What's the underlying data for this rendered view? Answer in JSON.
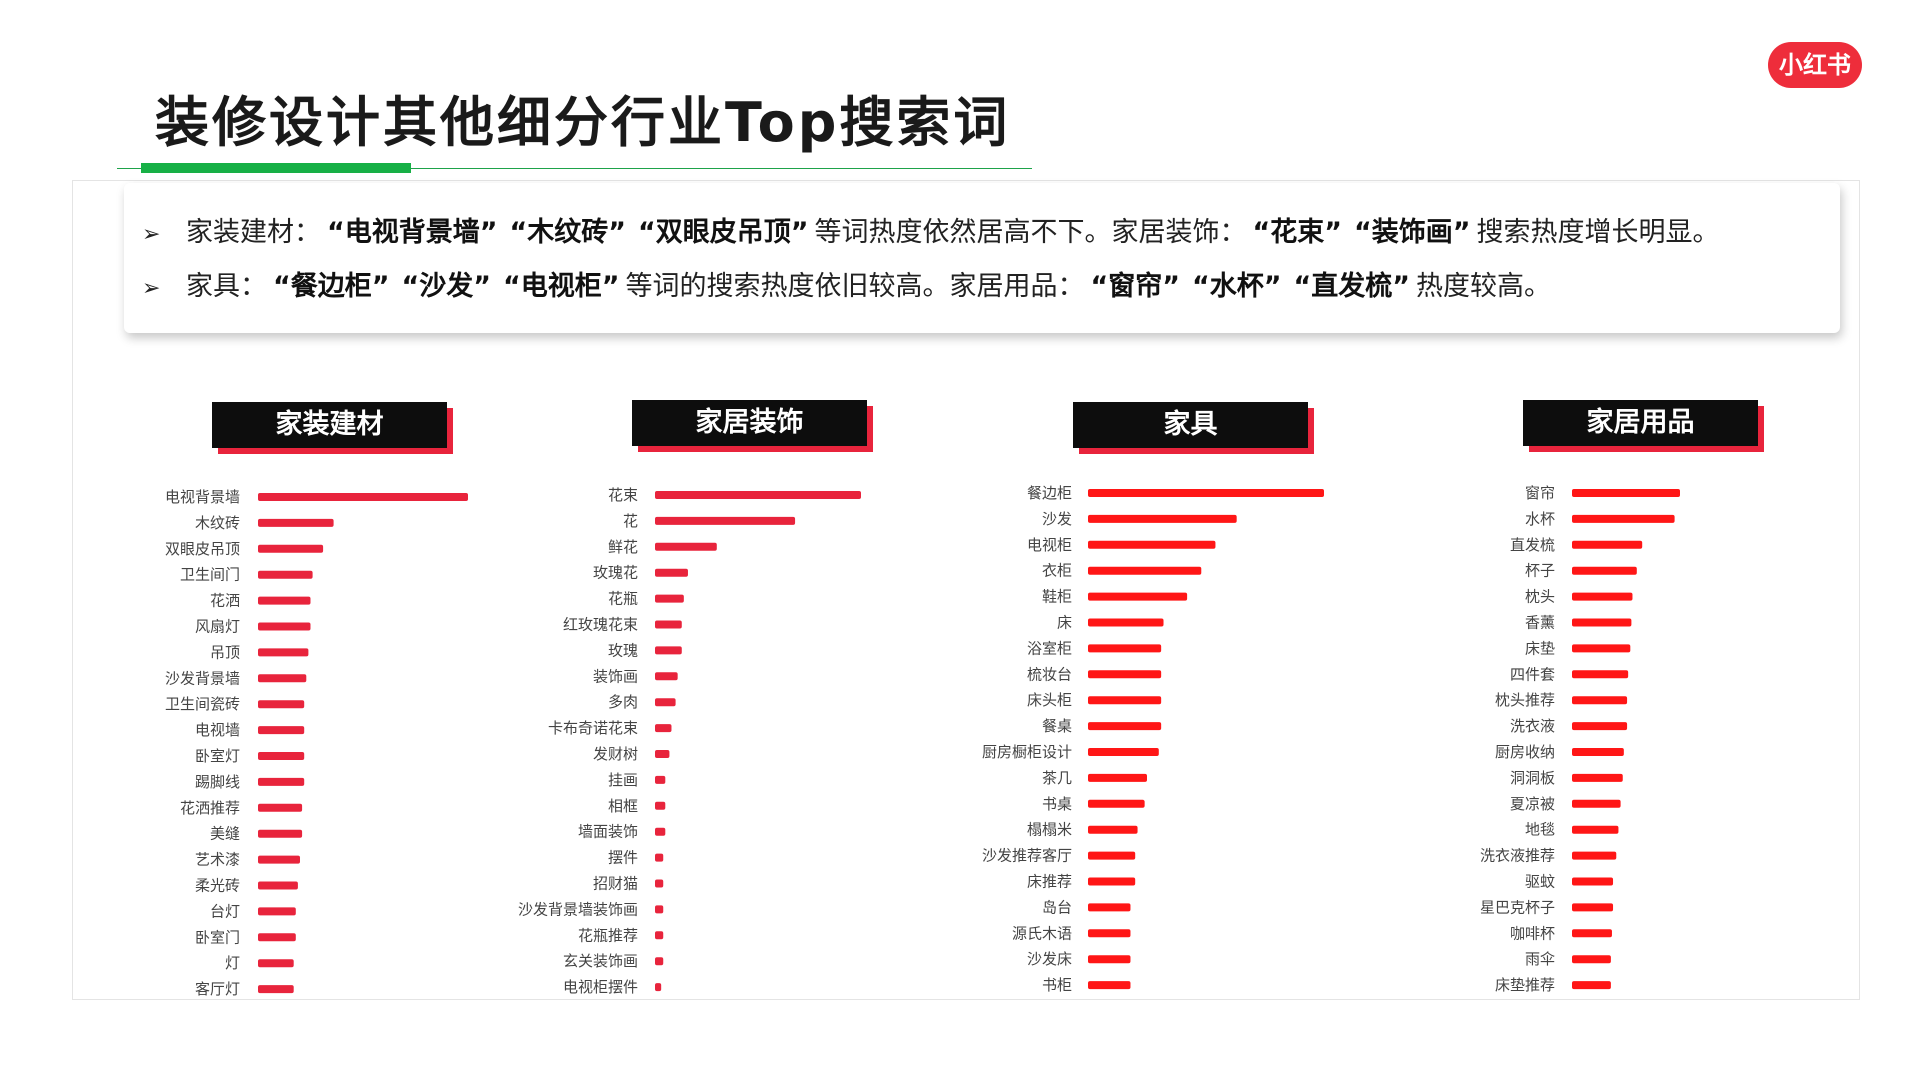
{
  "header": {
    "title": "装修设计其他细分行业Top搜索词",
    "logo_text": "小红书",
    "accent_color": "#17b046",
    "logo_color": "#ee2d3b"
  },
  "summary": {
    "lines": [
      {
        "arrow": "➢",
        "segments": [
          {
            "text": "家装建材：",
            "bold": false
          },
          {
            "text": "“电视背景墙”",
            "bold": true
          },
          {
            "text": "“木纹砖”",
            "bold": true
          },
          {
            "text": "“双眼皮吊顶”",
            "bold": true
          },
          {
            "text": "等词热度依然居高不下。家居装饰：",
            "bold": false
          },
          {
            "text": "“花束”",
            "bold": true
          },
          {
            "text": "“装饰画”",
            "bold": true
          },
          {
            "text": "搜索热度增长明显。",
            "bold": false
          }
        ]
      },
      {
        "arrow": "➢",
        "segments": [
          {
            "text": "家具：",
            "bold": false
          },
          {
            "text": "“餐边柜”",
            "bold": true
          },
          {
            "text": "“沙发”",
            "bold": true
          },
          {
            "text": "“电视柜”",
            "bold": true
          },
          {
            "text": "等词的搜索热度依旧较高。家居用品：",
            "bold": false
          },
          {
            "text": "“窗帘”",
            "bold": true
          },
          {
            "text": "“水杯”",
            "bold": true
          },
          {
            "text": "“直发梳”",
            "bold": true
          },
          {
            "text": "热度较高。",
            "bold": false
          }
        ]
      }
    ]
  },
  "chart_data": [
    {
      "type": "bar",
      "title": "家装建材",
      "bar_color": "#e8243c",
      "categories": [
        "电视背景墙",
        "木纹砖",
        "双眼皮吊顶",
        "卫生间门",
        "花洒",
        "风扇灯",
        "吊顶",
        "沙发背景墙",
        "卫生间瓷砖",
        "电视墙",
        "卧室灯",
        "踢脚线",
        "花洒推荐",
        "美缝",
        "艺术漆",
        "柔光砖",
        "台灯",
        "卧室门",
        "灯",
        "客厅灯"
      ],
      "values": [
        100,
        36,
        31,
        26,
        25,
        25,
        24,
        23,
        22,
        22,
        22,
        22,
        21,
        21,
        20,
        19,
        18,
        18,
        17,
        17
      ]
    },
    {
      "type": "bar",
      "title": "家居装饰",
      "bar_color": "#e8243c",
      "categories": [
        "花束",
        "花",
        "鲜花",
        "玫瑰花",
        "花瓶",
        "红玫瑰花束",
        "玫瑰",
        "装饰画",
        "多肉",
        "卡布奇诺花束",
        "发财树",
        "挂画",
        "相框",
        "墙面装饰",
        "摆件",
        "招财猫",
        "沙发背景墙装饰画",
        "花瓶推荐",
        "玄关装饰画",
        "电视柜摆件"
      ],
      "values": [
        100,
        68,
        30,
        16,
        14,
        13,
        13,
        11,
        10,
        8,
        7,
        5,
        5,
        5,
        4,
        4,
        4,
        4,
        4,
        3
      ]
    },
    {
      "type": "bar",
      "title": "家具",
      "bar_color": "#ff1616",
      "categories": [
        "餐边柜",
        "沙发",
        "电视柜",
        "衣柜",
        "鞋柜",
        "床",
        "浴室柜",
        "梳妆台",
        "床头柜",
        "餐桌",
        "厨房橱柜设计",
        "茶几",
        "书桌",
        "榻榻米",
        "沙发推荐客厅",
        "床推荐",
        "岛台",
        "源氏木语",
        "沙发床",
        "书柜"
      ],
      "values": [
        100,
        63,
        54,
        48,
        42,
        32,
        31,
        31,
        31,
        31,
        30,
        25,
        24,
        21,
        20,
        20,
        18,
        18,
        18,
        18
      ]
    },
    {
      "type": "bar",
      "title": "家居用品",
      "bar_color": "#ff1616",
      "categories": [
        "窗帘",
        "水杯",
        "直发梳",
        "杯子",
        "枕头",
        "香薰",
        "床垫",
        "四件套",
        "枕头推荐",
        "洗衣液",
        "厨房收纳",
        "洞洞板",
        "夏凉被",
        "地毯",
        "洗衣液推荐",
        "驱蚊",
        "星巴克杯子",
        "咖啡杯",
        "雨伞",
        "床垫推荐"
      ],
      "values": [
        100,
        95,
        65,
        60,
        56,
        55,
        54,
        52,
        51,
        51,
        48,
        47,
        45,
        43,
        41,
        38,
        38,
        37,
        36,
        36
      ]
    }
  ]
}
